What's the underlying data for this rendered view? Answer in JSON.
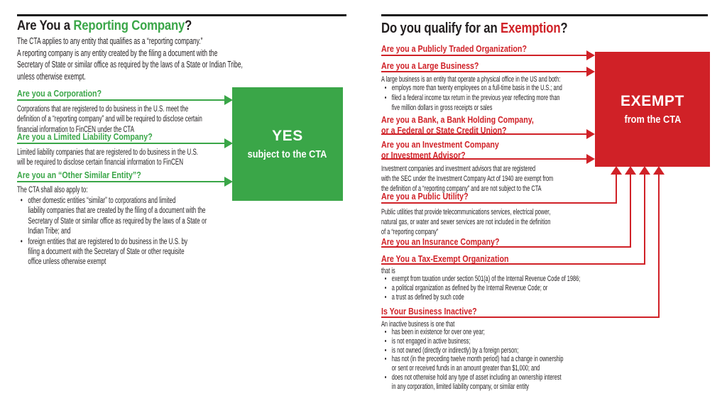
{
  "colors": {
    "green": "#3aa648",
    "red": "#d02127",
    "text": "#231f20",
    "rule": "#1a1a1a",
    "bg": "#ffffff"
  },
  "left": {
    "title_prefix": "Are You a ",
    "title_highlight": "Reporting Company",
    "title_suffix": "?",
    "intro_lines": [
      "The CTA applies to any entity that qualifies as a “reporting company.”",
      "A reporting company is any entity created by the filing a document with the",
      "Secretary of State or similar office as required by the laws of a State or Indian Tribe,",
      "unless otherwise exempt."
    ],
    "q_corporation": {
      "heading": "Are you a Corporation?",
      "body_lines": [
        "Corporations that are registered to do business in the U.S. meet the",
        "definition of a “reporting company” and will be required to disclose certain",
        "financial information to FinCEN under the CTA"
      ]
    },
    "q_llc": {
      "heading": "Are you a Limited Liability Company?",
      "body_lines": [
        "Limited liability companies that are registered to do business in the U.S.",
        "will be required to disclose certain financial information to FinCEN"
      ]
    },
    "q_other": {
      "heading": "Are you an “Other Similar Entity”?",
      "lead": "The CTA shall also apply to:",
      "bullet1_lines": [
        "other domestic entities “similar” to corporations and limited",
        "liability companies that are created by the filing of a document with the",
        "Secretary of State or similar office as required by the laws of a State or",
        "Indian Tribe; and"
      ],
      "bullet2_lines": [
        "foreign entities that are registered to do business in the U.S. by",
        "filing a document with the Secretary of State or other requisite",
        "office unless otherwise exempt"
      ]
    },
    "result": {
      "line1": "YES",
      "line2": "subject to the CTA"
    }
  },
  "right": {
    "title_prefix": "Do you qualify for an ",
    "title_highlight": "Exemption",
    "title_suffix": "?",
    "q_publicly_traded": {
      "heading": "Are you a Publicly Traded Organization?"
    },
    "q_large_business": {
      "heading": "Are you a Large Business?",
      "lead": "A large business is an entity that operate a physical office in the US and both:",
      "bullet1_lines": [
        "employs more than twenty employees on a full-time basis in the U.S.; and"
      ],
      "bullet2_lines": [
        "filed a federal income tax return in the previous year reflecting more than",
        "five million dollars in gross receipts or sales"
      ]
    },
    "q_bank": {
      "heading_lines": [
        "Are you a Bank, a Bank Holding Company,",
        "or a Federal or State Credit Union?"
      ]
    },
    "q_investment": {
      "heading_lines": [
        "Are you an Investment Company",
        "or Investment Advisor?"
      ],
      "body_lines": [
        "Investment companies and investment advisors that are registered",
        "with the SEC under the Investment Company Act of 1940 are exempt from",
        "the definition of a “reporting company” and are not subject to the CTA"
      ]
    },
    "q_public_utility": {
      "heading": "Are you a Public Utility?",
      "body_lines": [
        "Public utilities that provide telecommunications services, electrical power,",
        "natural gas, or water and sewer services are not included in the definition",
        "of a “reporting company”"
      ]
    },
    "q_insurance": {
      "heading": "Are you an Insurance Company?"
    },
    "q_tax_exempt": {
      "heading": "Are You a Tax-Exempt Organization",
      "lead": "that is",
      "bullets": [
        [
          "exempt from taxation under section 501(a) of the Internal Revenue Code of 1986;"
        ],
        [
          "a political organization as defined by the Internal Revenue Code; or"
        ],
        [
          "a trust as defined by such code"
        ]
      ]
    },
    "q_inactive": {
      "heading": "Is Your Business Inactive?",
      "lead": "An inactive business is one that",
      "bullets": [
        [
          "has been in existence for over one year;"
        ],
        [
          "is not engaged in active business;"
        ],
        [
          "is not owned (directly or indirectly) by a foreign person;"
        ],
        [
          "has not (in the preceding twelve month period) had a change in ownership",
          "or sent or received funds in an amount greater than $1,000; and"
        ],
        [
          "does not otherwise hold any type of asset including an ownership interest",
          "in any corporation, limited liability company, or similar entity"
        ]
      ]
    },
    "result": {
      "line1": "EXEMPT",
      "line2": "from the CTA"
    }
  }
}
